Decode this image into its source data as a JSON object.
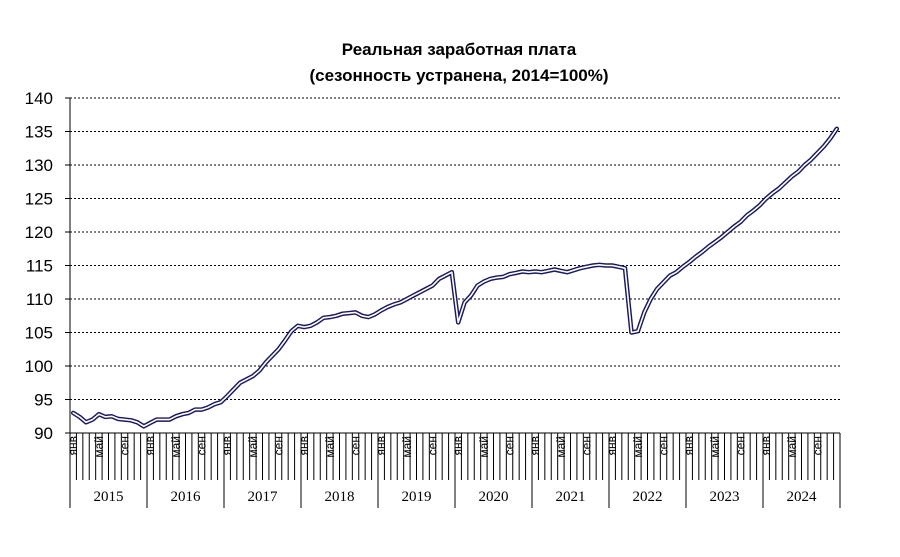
{
  "chart_data": {
    "type": "line",
    "title": "Реальная заработная плата",
    "subtitle": "(сезонность устранена, 2014=100%)",
    "ylim": [
      90,
      140
    ],
    "yticks": [
      90,
      95,
      100,
      105,
      110,
      115,
      120,
      125,
      130,
      135,
      140
    ],
    "grid": true,
    "grid_style": "dotted horizontal",
    "month_labels": [
      "янв",
      "май",
      "сен"
    ],
    "years": [
      "2015",
      "2016",
      "2017",
      "2018",
      "2019",
      "2020",
      "2021",
      "2022",
      "2023",
      "2024"
    ],
    "series": [
      {
        "color": "#1a1a5e",
        "values": [
          93.0,
          92.4,
          91.6,
          92.0,
          92.8,
          92.4,
          92.5,
          92.1,
          92.0,
          91.9,
          91.6,
          91.0,
          91.5,
          92.0,
          92.0,
          92.0,
          92.5,
          92.8,
          93.0,
          93.5,
          93.5,
          93.8,
          94.3,
          94.6,
          95.5,
          96.5,
          97.5,
          98.0,
          98.5,
          99.3,
          100.5,
          101.5,
          102.5,
          103.8,
          105.2,
          106.0,
          105.8,
          106.0,
          106.5,
          107.2,
          107.3,
          107.5,
          107.8,
          107.9,
          108.0,
          107.5,
          107.3,
          107.7,
          108.3,
          108.8,
          109.2,
          109.5,
          110.0,
          110.5,
          111.0,
          111.5,
          112.0,
          113.0,
          113.5,
          114.0,
          106.5,
          109.5,
          110.5,
          112.0,
          112.6,
          113.0,
          113.2,
          113.3,
          113.7,
          113.9,
          114.1,
          114.0,
          114.1,
          114.0,
          114.2,
          114.4,
          114.2,
          114.0,
          114.3,
          114.6,
          114.8,
          115.0,
          115.1,
          115.0,
          115.0,
          114.8,
          114.6,
          105.0,
          105.2,
          108.0,
          110.0,
          111.5,
          112.5,
          113.5,
          114.0,
          114.8,
          115.5,
          116.3,
          117.0,
          117.8,
          118.5,
          119.2,
          120.0,
          120.8,
          121.5,
          122.5,
          123.2,
          124.0,
          125.0,
          125.8,
          126.5,
          127.4,
          128.3,
          129.0,
          130.0,
          130.8,
          131.8,
          132.8,
          134.0,
          135.4
        ]
      }
    ]
  }
}
